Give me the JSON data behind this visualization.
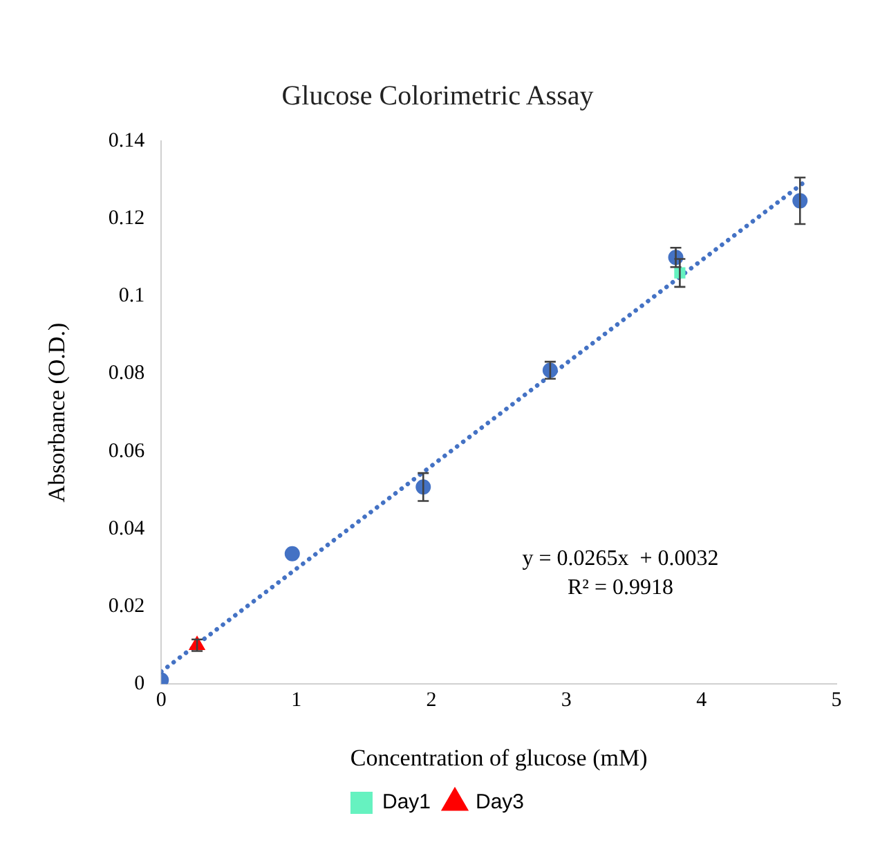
{
  "chart_data": {
    "type": "scatter",
    "title": "Glucose Colorimetric Assay",
    "xlabel": "Concentration of glucose (mM)",
    "ylabel": "Absorbance (O.D.)",
    "xlim": [
      0,
      5
    ],
    "xticks": [
      0,
      1,
      2,
      3,
      4,
      5
    ],
    "ylim": [
      0,
      0.14
    ],
    "yticks": [
      0,
      0.02,
      0.04,
      0.06,
      0.08,
      0.1,
      0.12,
      0.14
    ],
    "grid": false,
    "legend": "bottom",
    "annotations": [
      "y = 0.0265x  + 0.0032",
      "R² = 0.9918"
    ],
    "series": [
      {
        "color": "#4472c4",
        "marker": "circle",
        "x": [
          0,
          0.97,
          1.94,
          2.88,
          3.81,
          4.73
        ],
        "values": [
          0.001,
          0.0336,
          0.0508,
          0.0809,
          0.11,
          0.1246
        ],
        "errors": [
          null,
          null,
          0.0036,
          0.0022,
          0.0025,
          0.006
        ]
      },
      {
        "name": "Day1",
        "color": "#66f2c0",
        "marker": "square",
        "x": [
          3.84
        ],
        "values": [
          0.106
        ],
        "errors": [
          0.0036
        ]
      },
      {
        "name": "Day3",
        "color": "#ff0000",
        "marker": "triangle",
        "x": [
          0.265
        ],
        "values": [
          0.01
        ],
        "errors": [
          0.0015
        ]
      },
      {
        "type": "line",
        "color": "#4472c4",
        "marker": "none",
        "line_style": "dotted",
        "x": [
          0,
          4.75
        ],
        "values": [
          0.0032,
          0.1291
        ]
      }
    ]
  }
}
